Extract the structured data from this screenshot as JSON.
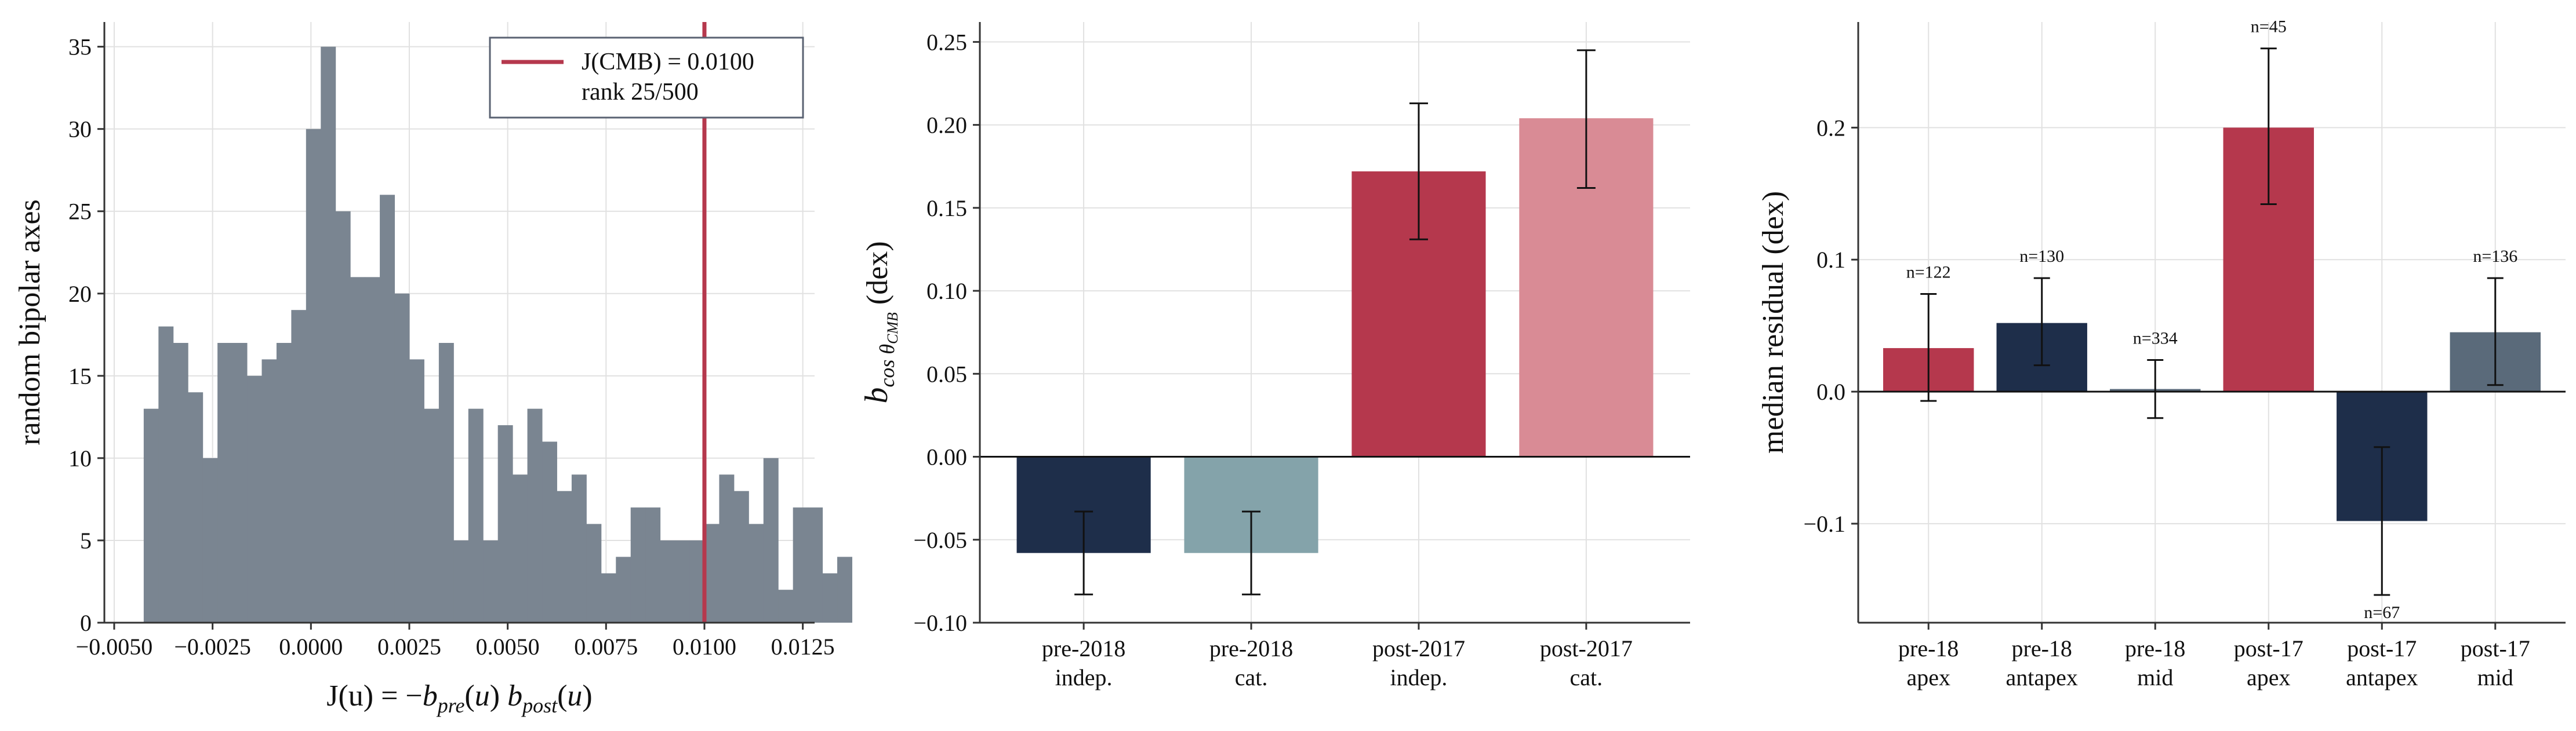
{
  "chart_data": [
    {
      "type": "bar",
      "subtype": "histogram",
      "bar_color": "#7a8591",
      "bins": {
        "start": -0.00425,
        "width": 0.000375,
        "counts": [
          13,
          18,
          17,
          14,
          10,
          17,
          17,
          15,
          16,
          17,
          19,
          30,
          35,
          25,
          21,
          21,
          26,
          20,
          16,
          13,
          17,
          5,
          13,
          5,
          12,
          9,
          13,
          11,
          8,
          9,
          6,
          3,
          4,
          7,
          7,
          5,
          5,
          5,
          6,
          9,
          8,
          6,
          10,
          2,
          7,
          7,
          3,
          4
        ]
      },
      "xlim": [
        -0.00525,
        0.0128
      ],
      "ylim": [
        0,
        36.5
      ],
      "xticks": [
        -0.005,
        -0.0025,
        0,
        0.0025,
        0.005,
        0.0075,
        0.01,
        0.0125
      ],
      "xtick_labels": [
        "−0.0050",
        "−0.0025",
        "0.0000",
        "0.0025",
        "0.0050",
        "0.0075",
        "0.0100",
        "0.0125"
      ],
      "yticks": [
        0,
        5,
        10,
        15,
        20,
        25,
        30,
        35
      ],
      "ytick_labels": [
        "0",
        "5",
        "10",
        "15",
        "20",
        "25",
        "30",
        "35"
      ],
      "xlabel": "J(u) = −b",
      "xlabel_parts": [
        "J(u) = −",
        "b",
        "pre",
        "(",
        "u",
        ") ",
        "b",
        "post",
        "(",
        "u",
        ")"
      ],
      "ylabel": "random bipolar axes",
      "vline": {
        "x": 0.01,
        "color": "#b5384d"
      },
      "legend": {
        "line1": "J(CMB) = 0.0100",
        "line2": "rank 25/500",
        "position": "top-right"
      },
      "grid": true
    },
    {
      "type": "bar",
      "categories": [
        [
          "pre-2018",
          "indep."
        ],
        [
          "pre-2018",
          "cat."
        ],
        [
          "post-2017",
          "indep."
        ],
        [
          "post-2017",
          "cat."
        ]
      ],
      "values": [
        -0.058,
        -0.058,
        0.172,
        0.204
      ],
      "err_low": [
        -0.083,
        -0.083,
        0.131,
        0.162
      ],
      "err_high": [
        -0.033,
        -0.033,
        0.213,
        0.245
      ],
      "colors": [
        "#1e2e4a",
        "#84a3aa",
        "#b5384d",
        "#d98b95"
      ],
      "ylim": [
        -0.1,
        0.262
      ],
      "yticks": [
        -0.1,
        -0.05,
        0,
        0.05,
        0.1,
        0.15,
        0.2,
        0.25
      ],
      "ytick_labels": [
        "−0.10",
        "−0.05",
        "0.00",
        "0.05",
        "0.10",
        "0.15",
        "0.20",
        "0.25"
      ],
      "ylabel_parts": [
        "b",
        "cos θ",
        "CMB",
        " (dex)"
      ],
      "grid": true
    },
    {
      "type": "bar",
      "categories": [
        [
          "pre-18",
          "apex"
        ],
        [
          "pre-18",
          "antapex"
        ],
        [
          "pre-18",
          "mid"
        ],
        [
          "post-17",
          "apex"
        ],
        [
          "post-17",
          "antapex"
        ],
        [
          "post-17",
          "mid"
        ]
      ],
      "values": [
        0.033,
        0.052,
        0.002,
        0.2,
        -0.098,
        0.045
      ],
      "err_low": [
        -0.007,
        0.02,
        -0.02,
        0.142,
        -0.154,
        0.005
      ],
      "err_high": [
        0.074,
        0.086,
        0.024,
        0.26,
        -0.042,
        0.086
      ],
      "counts": [
        "n=122",
        "n=130",
        "n=334",
        "n=45",
        "n=67",
        "n=136"
      ],
      "colors": [
        "#b5384d",
        "#1e2e4a",
        "#5a6a7a",
        "#b5384d",
        "#1e2e4a",
        "#5a6a7a"
      ],
      "ylim": [
        -0.175,
        0.28
      ],
      "yticks": [
        -0.1,
        0,
        0.1,
        0.2
      ],
      "ytick_labels": [
        "−0.1",
        "0.0",
        "0.1",
        "0.2"
      ],
      "ylabel": "median residual (dex)",
      "grid": true
    }
  ]
}
